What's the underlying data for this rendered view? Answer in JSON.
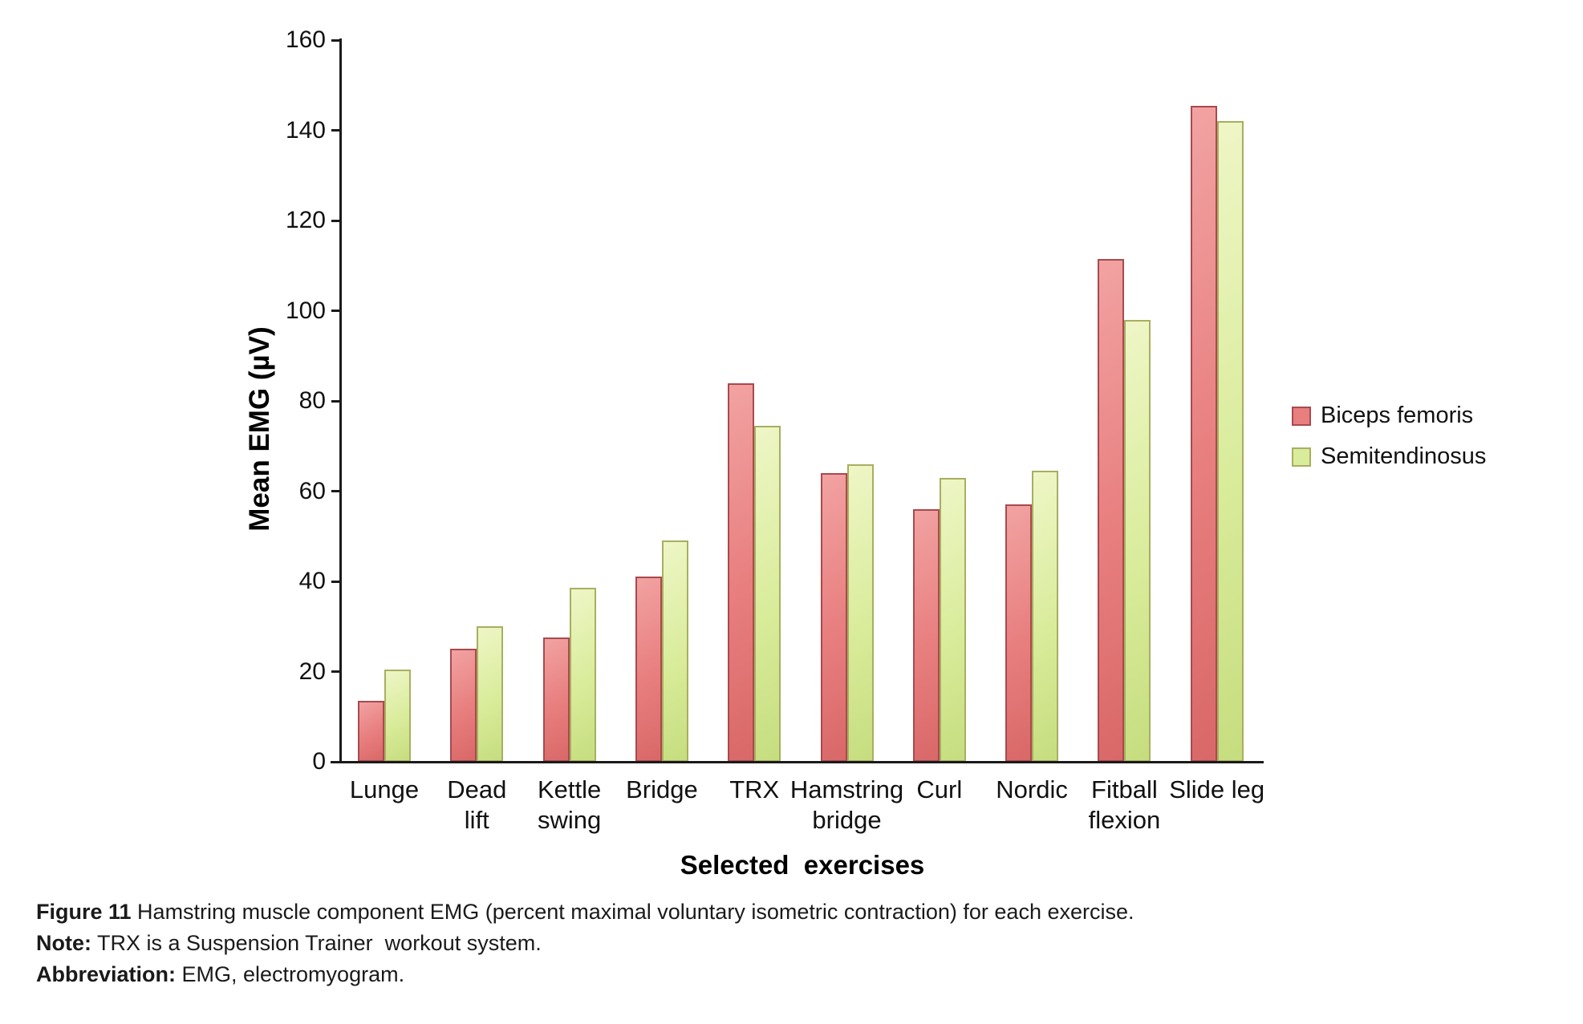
{
  "chart_data": {
    "type": "bar",
    "title": "",
    "xlabel": "Selected  exercises",
    "ylabel": "Mean EMG (µV)",
    "ylim": [
      0,
      160
    ],
    "yticks": [
      0,
      20,
      40,
      60,
      80,
      100,
      120,
      140,
      160
    ],
    "grid": false,
    "legend_position": "right",
    "categories": [
      {
        "label": "Lunge",
        "lines": [
          "Lunge"
        ]
      },
      {
        "label": "Dead lift",
        "lines": [
          "Dead",
          "lift"
        ]
      },
      {
        "label": "Kettle swing",
        "lines": [
          "Kettle",
          "swing"
        ]
      },
      {
        "label": "Bridge",
        "lines": [
          "Bridge"
        ]
      },
      {
        "label": "TRX",
        "lines": [
          "TRX"
        ]
      },
      {
        "label": "Hamstring bridge",
        "lines": [
          "Hamstring",
          "bridge"
        ]
      },
      {
        "label": "Curl",
        "lines": [
          "Curl"
        ]
      },
      {
        "label": "Nordic",
        "lines": [
          "Nordic"
        ]
      },
      {
        "label": "Fitball flexion",
        "lines": [
          "Fitball",
          "flexion"
        ]
      },
      {
        "label": "Slide leg",
        "lines": [
          "Slide leg"
        ]
      }
    ],
    "series": [
      {
        "name": "Biceps femoris",
        "values": [
          13.5,
          25,
          27.5,
          41,
          84,
          64,
          56,
          57,
          111.5,
          145.5
        ],
        "color_light": "#f2a2a2",
        "color": "#e87e7e",
        "color_dark": "#d96868",
        "border": "#a84a4e"
      },
      {
        "name": "Semitendinosus",
        "values": [
          20.5,
          30,
          38.5,
          49,
          74.5,
          66,
          63,
          64.5,
          98,
          142
        ],
        "color_light": "#eef6c6",
        "color": "#d9ec9b",
        "color_dark": "#c6dd7f",
        "border": "#a9ae60"
      }
    ]
  },
  "caption": {
    "figure_label": "Figure 11",
    "figure_text": " Hamstring muscle component EMG (percent maximal voluntary isometric contraction) for each exercise.",
    "note_label": "Note:",
    "note_text": " TRX is a Suspension Trainer  workout system.",
    "abbrev_label": "Abbreviation:",
    "abbrev_text": " EMG, electromyogram."
  }
}
